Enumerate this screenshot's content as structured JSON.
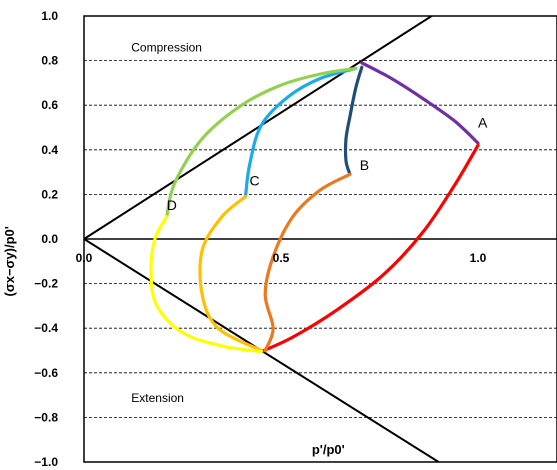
{
  "chart_data": {
    "type": "line",
    "title": "",
    "xlabel": "p'/p0'",
    "ylabel": "(σx−σy)/p0'",
    "xlim": [
      0.0,
      1.2
    ],
    "ylim": [
      -1.0,
      1.0
    ],
    "x_ticks": [
      "0.0",
      "0.5",
      "1.0"
    ],
    "x_tick_values": [
      0.0,
      0.5,
      1.0
    ],
    "y_ticks": [
      "1.0",
      "0.8",
      "0.6",
      "0.4",
      "0.2",
      "0.0",
      "−0.2",
      "−0.4",
      "−0.6",
      "−0.8",
      "−1.0"
    ],
    "y_tick_values": [
      1.0,
      0.8,
      0.6,
      0.4,
      0.2,
      0.0,
      -0.2,
      -0.4,
      -0.6,
      -0.8,
      -1.0
    ],
    "grid": "horizontal dashed",
    "annotations": [
      {
        "text": "Compression",
        "x": 0.12,
        "y": 0.84
      },
      {
        "text": "Extension",
        "x": 0.12,
        "y": -0.73
      }
    ],
    "reference_lines": [
      {
        "kind": "compression-line",
        "x": [
          0.0,
          1.2
        ],
        "y": [
          0.0,
          1.36
        ],
        "color": "#000000"
      },
      {
        "kind": "extension-line",
        "x": [
          0.0,
          0.9
        ],
        "y": [
          0.0,
          -1.0
        ],
        "color": "#000000"
      }
    ],
    "point_labels": [
      {
        "text": "A",
        "x": 1.0,
        "y": 0.5
      },
      {
        "text": "B",
        "x": 0.7,
        "y": 0.31
      },
      {
        "text": "C",
        "x": 0.42,
        "y": 0.24
      },
      {
        "text": "D",
        "x": 0.21,
        "y": 0.13
      }
    ],
    "series": [
      {
        "color": "#7030a0",
        "x": [
          0.705,
          0.78,
          0.86,
          0.94,
          1.0
        ],
        "y": [
          0.79,
          0.72,
          0.63,
          0.53,
          0.43
        ]
      },
      {
        "color": "#ff0000",
        "x": [
          1.0,
          0.94,
          0.86,
          0.76,
          0.64,
          0.53,
          0.45
        ],
        "y": [
          0.42,
          0.24,
          0.03,
          -0.16,
          -0.32,
          -0.44,
          -0.505
        ]
      },
      {
        "color": "#1f4e79",
        "x": [
          0.705,
          0.69,
          0.675,
          0.665,
          0.665,
          0.675
        ],
        "y": [
          0.77,
          0.68,
          0.55,
          0.45,
          0.35,
          0.29
        ]
      },
      {
        "color": "#e97a1f",
        "x": [
          0.675,
          0.6,
          0.53,
          0.48,
          0.46,
          0.48,
          0.46
        ],
        "y": [
          0.29,
          0.22,
          0.1,
          -0.08,
          -0.25,
          -0.4,
          -0.5
        ]
      },
      {
        "color": "#1aabe8",
        "x": [
          0.69,
          0.6,
          0.52,
          0.45,
          0.42,
          0.41
        ],
        "y": [
          0.765,
          0.72,
          0.64,
          0.51,
          0.33,
          0.19
        ]
      },
      {
        "color": "#ffc000",
        "x": [
          0.41,
          0.35,
          0.3,
          0.3,
          0.34,
          0.45
        ],
        "y": [
          0.19,
          0.1,
          -0.05,
          -0.25,
          -0.4,
          -0.5
        ]
      },
      {
        "color": "#92d050",
        "x": [
          0.69,
          0.6,
          0.5,
          0.4,
          0.3,
          0.23,
          0.21
        ],
        "y": [
          0.765,
          0.74,
          0.69,
          0.6,
          0.45,
          0.25,
          0.1
        ]
      },
      {
        "color": "#ffff00",
        "x": [
          0.21,
          0.18,
          0.17,
          0.185,
          0.25,
          0.35,
          0.45
        ],
        "y": [
          0.1,
          0.0,
          -0.15,
          -0.3,
          -0.42,
          -0.48,
          -0.505
        ]
      }
    ]
  }
}
